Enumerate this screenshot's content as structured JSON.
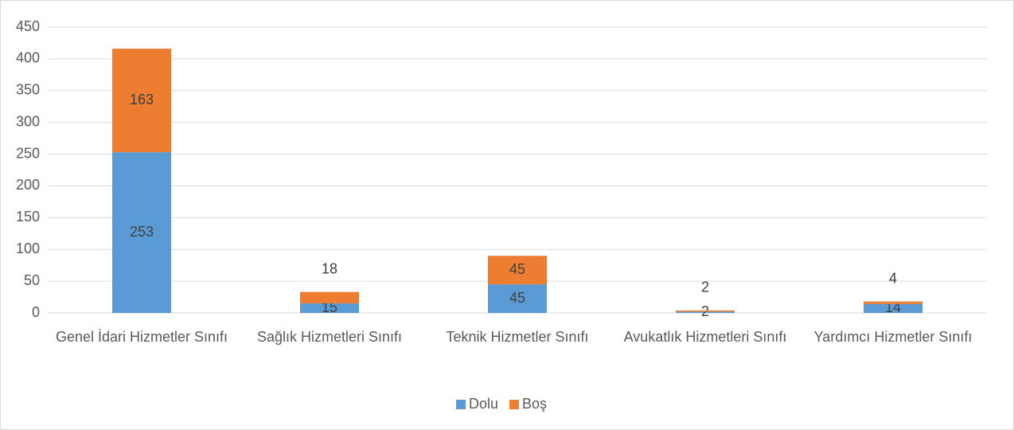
{
  "chart_data": {
    "type": "stacked_bar",
    "categories": [
      "Genel İdari Hizmetler Sınıfı",
      "Sağlık Hizmetleri Sınıfı",
      "Teknik Hizmetler Sınıfı",
      "Avukatlık Hizmetleri Sınıfı",
      "Yardımcı Hizmetler Sınıfı"
    ],
    "series": [
      {
        "name": "Dolu",
        "color": "#5b9bd5",
        "values": [
          253,
          15,
          45,
          2,
          14
        ]
      },
      {
        "name": "Boş",
        "color": "#ed7d31",
        "values": [
          163,
          18,
          45,
          2,
          4
        ]
      }
    ],
    "ylim": [
      0,
      450
    ],
    "yticks": [
      0,
      50,
      100,
      150,
      200,
      250,
      300,
      350,
      400,
      450
    ],
    "grid": true,
    "legend": "bottom"
  }
}
